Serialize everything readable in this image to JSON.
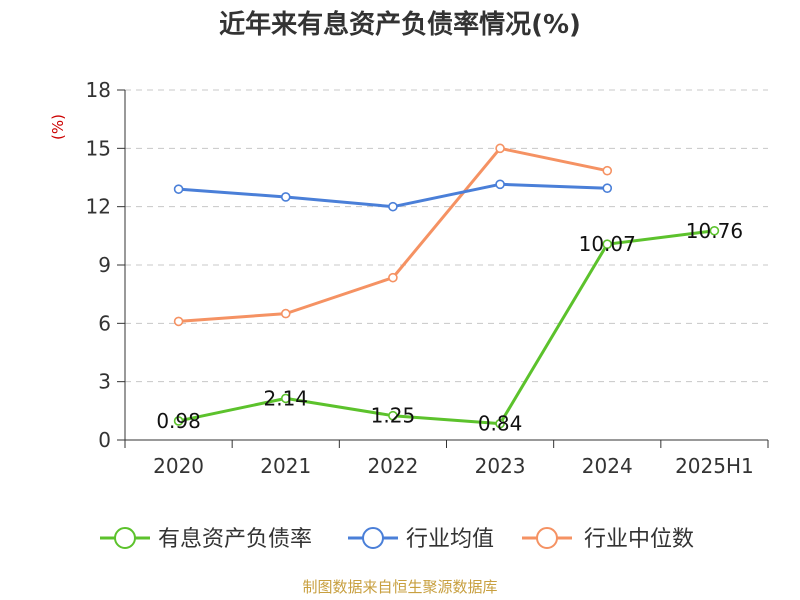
{
  "chart_data": {
    "type": "line",
    "title": "近年来有息资产负债率情况(%)",
    "unit_label": "(%)",
    "categories": [
      "2020",
      "2021",
      "2022",
      "2023",
      "2024",
      "2025H1"
    ],
    "ylim": [
      0,
      18
    ],
    "yticks": [
      "0",
      "3",
      "6",
      "9",
      "12",
      "15",
      "18"
    ],
    "grid": true,
    "legend_position": "bottom",
    "series": [
      {
        "name": "有息资产负债率",
        "color": "#5cc22c",
        "values": [
          0.98,
          2.14,
          1.25,
          0.84,
          10.07,
          10.76
        ],
        "labels": [
          "0.98",
          "2.14",
          "1.25",
          "0.84",
          "10.07",
          "10.76"
        ]
      },
      {
        "name": "行业均值",
        "color": "#4a7fd8",
        "values": [
          12.9,
          12.5,
          12.0,
          13.15,
          12.95,
          null
        ]
      },
      {
        "name": "行业中位数",
        "color": "#f59263",
        "values": [
          6.1,
          6.5,
          8.35,
          15.0,
          13.85,
          null
        ]
      }
    ]
  },
  "source_note": "制图数据来自恒生聚源数据库"
}
